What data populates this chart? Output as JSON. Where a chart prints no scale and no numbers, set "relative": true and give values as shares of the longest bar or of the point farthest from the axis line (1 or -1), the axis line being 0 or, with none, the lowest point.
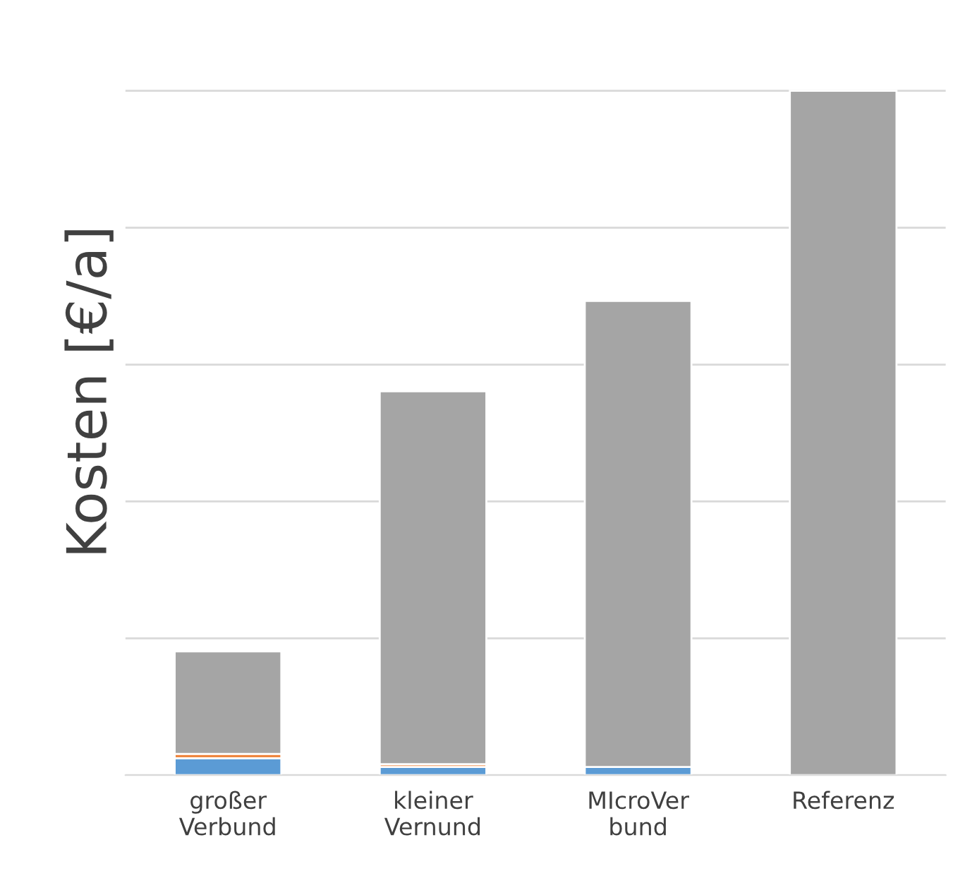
{
  "chart_data": {
    "type": "bar",
    "stacked": true,
    "relative": true,
    "ylabel": "Kosten [€/a]",
    "grid": "y",
    "legend": false,
    "categories": [
      "großer\nVerbund",
      "kleiner\nVernund",
      "MIcroVer\nbund",
      "Referenz"
    ],
    "series": [
      {
        "color": "#5b9bd5",
        "values": [
          0.025,
          0.012,
          0.012,
          0
        ]
      },
      {
        "color": "#ed7d31",
        "values": [
          0.006,
          0.004,
          null,
          0
        ]
      },
      {
        "color": "#a5a5a5",
        "values": [
          0.15,
          0.545,
          0.681,
          1
        ]
      }
    ]
  }
}
